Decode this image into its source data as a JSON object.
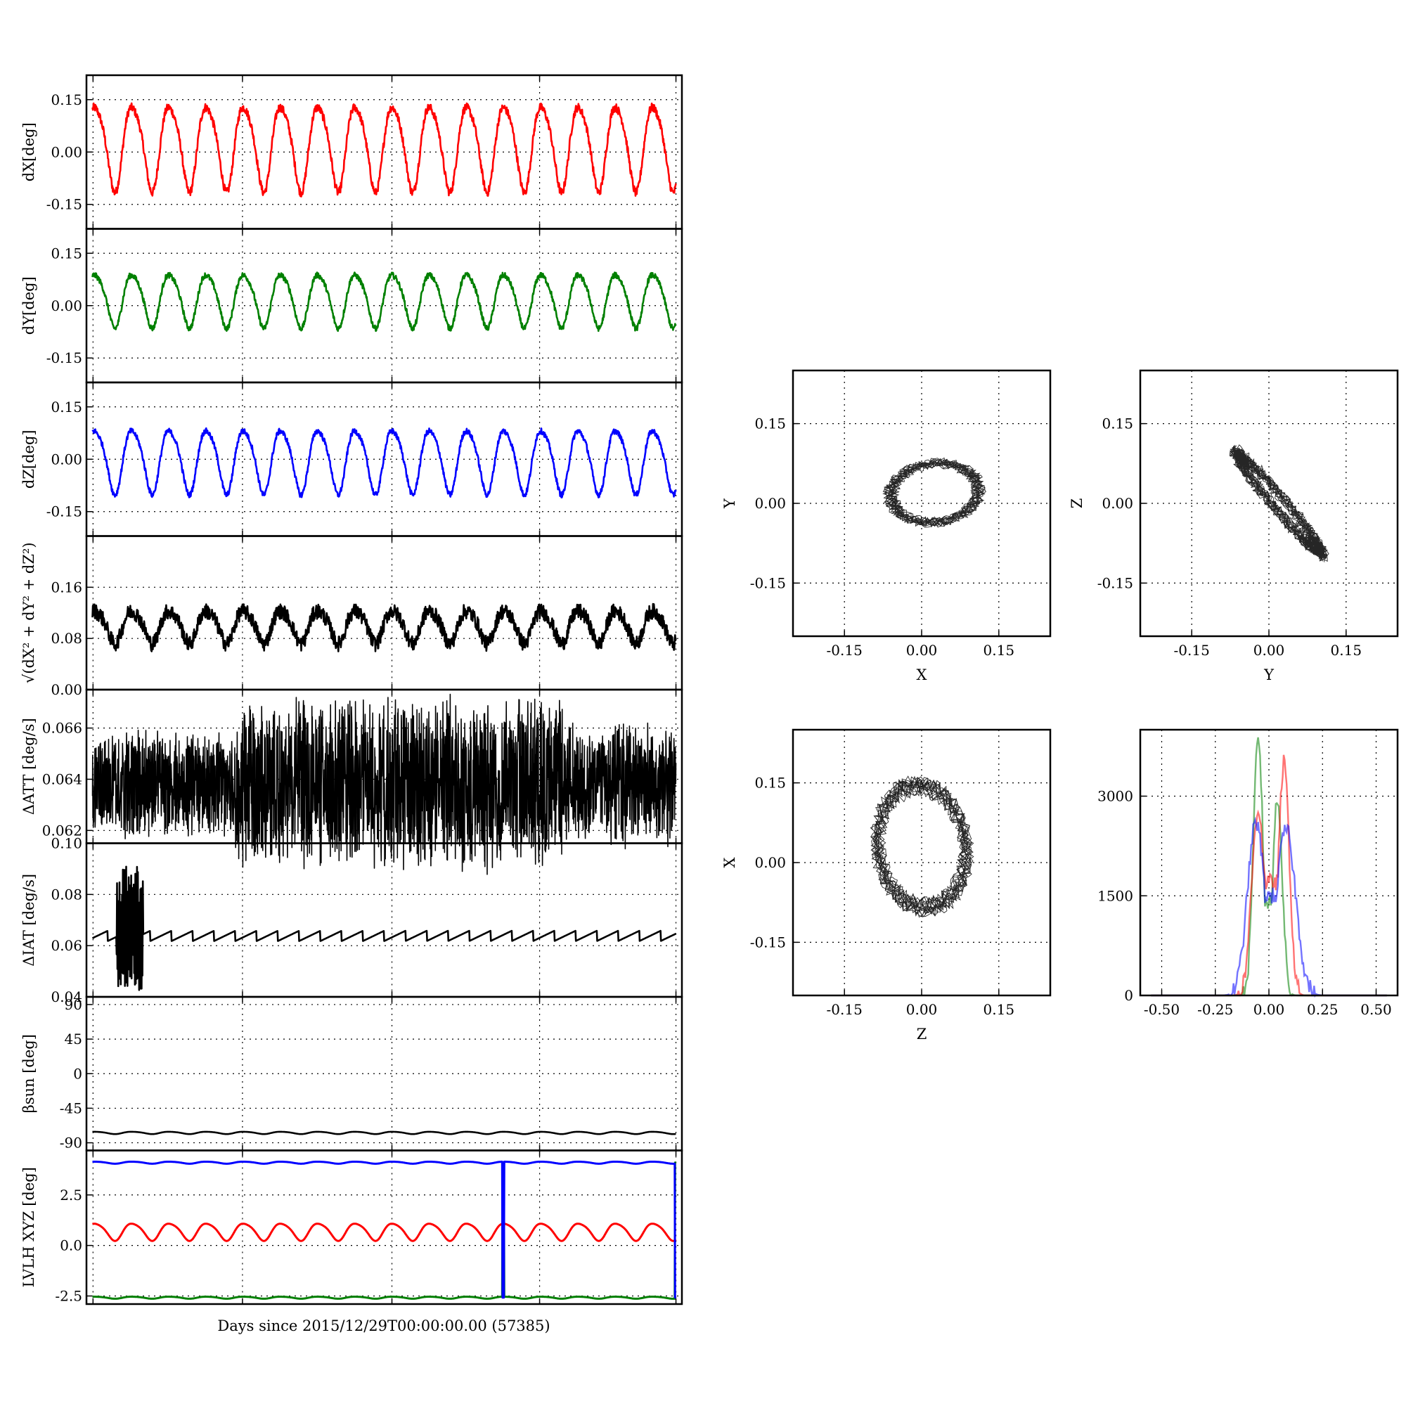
{
  "figure": {
    "xlabel": "Days since 2015/12/29T00:00:00.00 (57385)"
  },
  "colors": {
    "red": "#ff0000",
    "green": "#008000",
    "blue": "#0000ff",
    "black": "#000000"
  },
  "chart_data": [
    {
      "type": "line",
      "ylabel": "dX[deg]",
      "ylim": [
        -0.22,
        0.22
      ],
      "yticks": [
        "0.15",
        "0.00",
        "-0.15"
      ],
      "ytick_values": [
        0.15,
        0.0,
        -0.15
      ],
      "series": [
        {
          "color": "#ff0000",
          "shape": "periodic",
          "cycles": 16,
          "mean": 0.02,
          "amplitude": 0.12,
          "noise": 0.012
        }
      ]
    },
    {
      "type": "line",
      "ylabel": "dY[deg]",
      "ylim": [
        -0.22,
        0.22
      ],
      "yticks": [
        "0.15",
        "0.00",
        "-0.15"
      ],
      "ytick_values": [
        0.15,
        0.0,
        -0.15
      ],
      "series": [
        {
          "color": "#008000",
          "shape": "periodic",
          "cycles": 16,
          "mean": 0.02,
          "amplitude": 0.075,
          "noise": 0.008
        }
      ]
    },
    {
      "type": "line",
      "ylabel": "dZ[deg]",
      "ylim": [
        -0.22,
        0.22
      ],
      "yticks": [
        "0.15",
        "0.00",
        "-0.15"
      ],
      "ytick_values": [
        0.15,
        0.0,
        -0.15
      ],
      "series": [
        {
          "color": "#0000ff",
          "shape": "periodic",
          "cycles": 16,
          "mean": 0.0,
          "amplitude": 0.09,
          "noise": 0.008
        }
      ]
    },
    {
      "type": "line",
      "ylabel": "√(dX² + dY² + dZ²)",
      "ylim": [
        0.0,
        0.24
      ],
      "yticks": [
        "0.16",
        "0.08",
        "0.00"
      ],
      "ytick_values": [
        0.16,
        0.08,
        0.0
      ],
      "series": [
        {
          "color": "#000000",
          "shape": "periodic",
          "cycles": 16,
          "mean": 0.1,
          "amplitude": 0.025,
          "noise": 0.012
        }
      ]
    },
    {
      "type": "line",
      "ylabel": "ΔATT [deg/s]",
      "ylim": [
        0.0615,
        0.0675
      ],
      "yticks": [
        "0.066",
        "0.064",
        "0.062"
      ],
      "ytick_values": [
        0.066,
        0.064,
        0.062
      ],
      "series": [
        {
          "color": "#000000",
          "shape": "band",
          "mean": 0.0638,
          "width_start": 0.0026,
          "width_peak": 0.0042,
          "width_end": 0.003
        }
      ]
    },
    {
      "type": "line",
      "ylabel": "ΔIAT [deg/s]",
      "ylim": [
        0.04,
        0.1
      ],
      "yticks": [
        "0.10",
        "0.08",
        "0.06",
        "0.04"
      ],
      "ytick_values": [
        0.1,
        0.08,
        0.06,
        0.04
      ],
      "series": [
        {
          "color": "#000000",
          "shape": "sawtooth",
          "cycles": 28,
          "base": 0.063,
          "step": 0.004,
          "burst_start": 0.05,
          "burst_end": 0.095,
          "burst_low": 0.042,
          "burst_high": 0.091
        }
      ]
    },
    {
      "type": "line",
      "ylabel": "βsun [deg]",
      "ylim": [
        -100,
        100
      ],
      "yticks": [
        "90",
        "45",
        "0",
        "-45",
        "-90"
      ],
      "ytick_values": [
        90,
        45,
        0,
        -45,
        -90
      ],
      "series": [
        {
          "color": "#000000",
          "shape": "periodic",
          "cycles": 16,
          "mean": -77,
          "amplitude": 1.5,
          "noise": 0
        }
      ]
    },
    {
      "type": "line",
      "ylabel": "LVLH XYZ [deg]",
      "ylim": [
        -2.9,
        4.7
      ],
      "yticks": [
        "2.5",
        "0.0",
        "-2.5"
      ],
      "ytick_values": [
        2.5,
        0.0,
        -2.5
      ],
      "series": [
        {
          "color": "#ff0000",
          "shape": "periodic",
          "cycles": 16,
          "mean": 0.7,
          "amplitude": 0.42,
          "noise": 0
        },
        {
          "color": "#008000",
          "shape": "periodic",
          "cycles": 16,
          "mean": -2.58,
          "amplitude": 0.05,
          "noise": 0,
          "spikes": [
            0.7,
            0.99
          ],
          "spike_to": 4.1
        },
        {
          "color": "#0000ff",
          "shape": "periodic",
          "cycles": 16,
          "mean": 4.1,
          "amplitude": 0.05,
          "noise": 0,
          "spikes": [
            0.7,
            0.99
          ],
          "spike_to": -2.58
        }
      ]
    }
  ],
  "scatter_plots": [
    {
      "type": "scatter",
      "xlabel": "X",
      "ylabel": "Y",
      "lim": [
        -0.25,
        0.25
      ],
      "ticks": [
        "-0.15",
        "0.00",
        "0.15"
      ],
      "tick_values": [
        -0.15,
        0.0,
        0.15
      ],
      "center": [
        0.025,
        0.02
      ],
      "radius": [
        0.085,
        0.055
      ],
      "tilt": 0.1,
      "thin": false
    },
    {
      "type": "scatter",
      "xlabel": "Y",
      "ylabel": "Z",
      "lim": [
        -0.25,
        0.25
      ],
      "ticks": [
        "-0.15",
        "0.00",
        "0.15"
      ],
      "tick_values": [
        -0.15,
        0.0,
        0.15
      ],
      "center": [
        0.02,
        0.0
      ],
      "radius": [
        0.12,
        0.012
      ],
      "tilt": -0.85,
      "thin": true
    },
    {
      "type": "scatter",
      "xlabel": "Z",
      "ylabel": "X",
      "lim": [
        -0.25,
        0.25
      ],
      "ticks": [
        "-0.15",
        "0.00",
        "0.15"
      ],
      "tick_values": [
        -0.15,
        0.0,
        0.15
      ],
      "center": [
        0.0,
        0.03
      ],
      "radius": [
        0.085,
        0.115
      ],
      "tilt": 0.15,
      "thin": false
    }
  ],
  "histogram": {
    "type": "line",
    "xlim": [
      -0.6,
      0.6
    ],
    "ylim": [
      0,
      4000
    ],
    "xticks": [
      "-0.50",
      "-0.25",
      "0.00",
      "0.25",
      "0.50"
    ],
    "xtick_values": [
      -0.5,
      -0.25,
      0.0,
      0.25,
      0.5
    ],
    "yticks": [
      "3000",
      "1500",
      "0"
    ],
    "ytick_values": [
      3000,
      1500,
      0
    ],
    "series": [
      {
        "color": "#008000",
        "peaks": [
          [
            -0.05,
            3900,
            0.022
          ],
          [
            0.04,
            3000,
            0.022
          ]
        ],
        "valley": 1400
      },
      {
        "color": "#ff0000",
        "peaks": [
          [
            -0.05,
            2800,
            0.03
          ],
          [
            0.07,
            3500,
            0.025
          ]
        ],
        "valley": 1700
      },
      {
        "color": "#0000ff",
        "peaks": [
          [
            -0.06,
            2600,
            0.04
          ],
          [
            0.08,
            2500,
            0.045
          ]
        ],
        "valley": 1500
      }
    ]
  }
}
